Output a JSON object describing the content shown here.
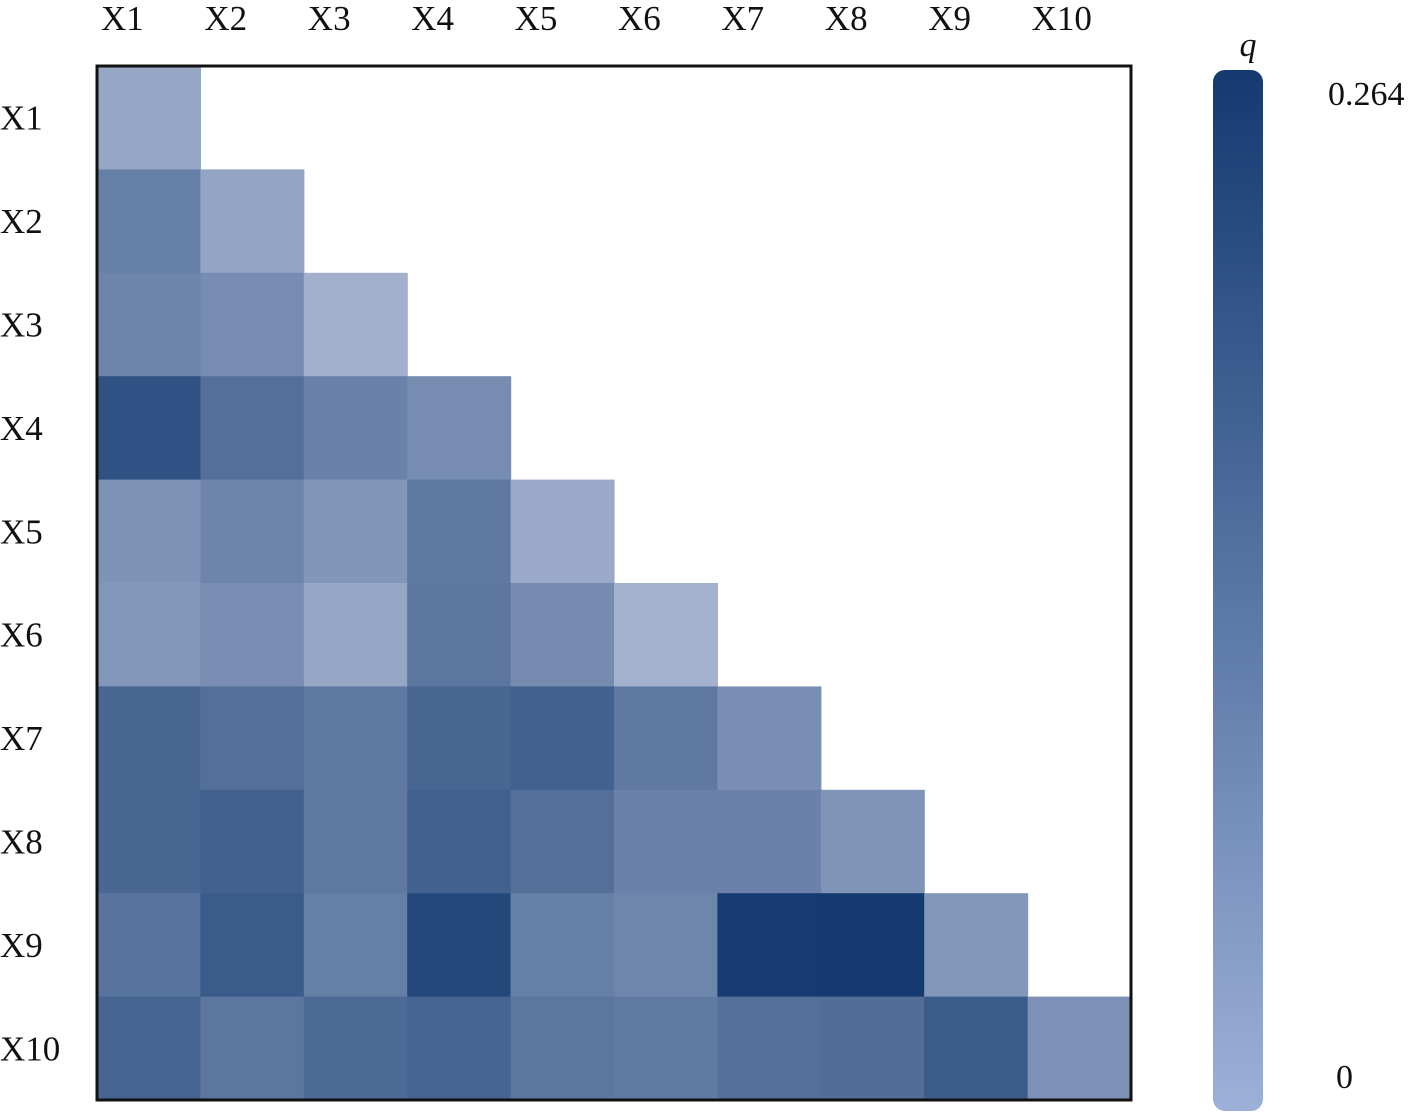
{
  "chart_data": {
    "type": "heatmap",
    "title": "",
    "x_labels": [
      "X1",
      "X2",
      "X3",
      "X4",
      "X5",
      "X6",
      "X7",
      "X8",
      "X9",
      "X10"
    ],
    "y_labels": [
      "X1",
      "X2",
      "X3",
      "X4",
      "X5",
      "X6",
      "X7",
      "X8",
      "X9",
      "X10"
    ],
    "matrix": [
      [
        0.085
      ],
      [
        0.15,
        0.088
      ],
      [
        0.14,
        0.128,
        0.068
      ],
      [
        0.225,
        0.175,
        0.145,
        0.128
      ],
      [
        0.118,
        0.14,
        0.112,
        0.16,
        0.078
      ],
      [
        0.11,
        0.125,
        0.085,
        0.165,
        0.13,
        0.065
      ],
      [
        0.19,
        0.175,
        0.16,
        0.19,
        0.2,
        0.16,
        0.125
      ],
      [
        0.19,
        0.2,
        0.16,
        0.2,
        0.175,
        0.145,
        0.145,
        0.115
      ],
      [
        0.17,
        0.21,
        0.15,
        0.24,
        0.15,
        0.138,
        0.262,
        0.264,
        0.11
      ],
      [
        0.195,
        0.165,
        0.185,
        0.195,
        0.165,
        0.158,
        0.175,
        0.18,
        0.21,
        0.12
      ]
    ],
    "colorbar": {
      "label": "q",
      "min": 0,
      "max": 0.264,
      "min_label": "0",
      "max_label": "0.264",
      "color_low": "#9cb0d8",
      "color_high": "#143a70"
    },
    "cell_color_low": "#d3d9ee",
    "cell_color_high": "#143a70",
    "grid": false,
    "legend": "right"
  }
}
